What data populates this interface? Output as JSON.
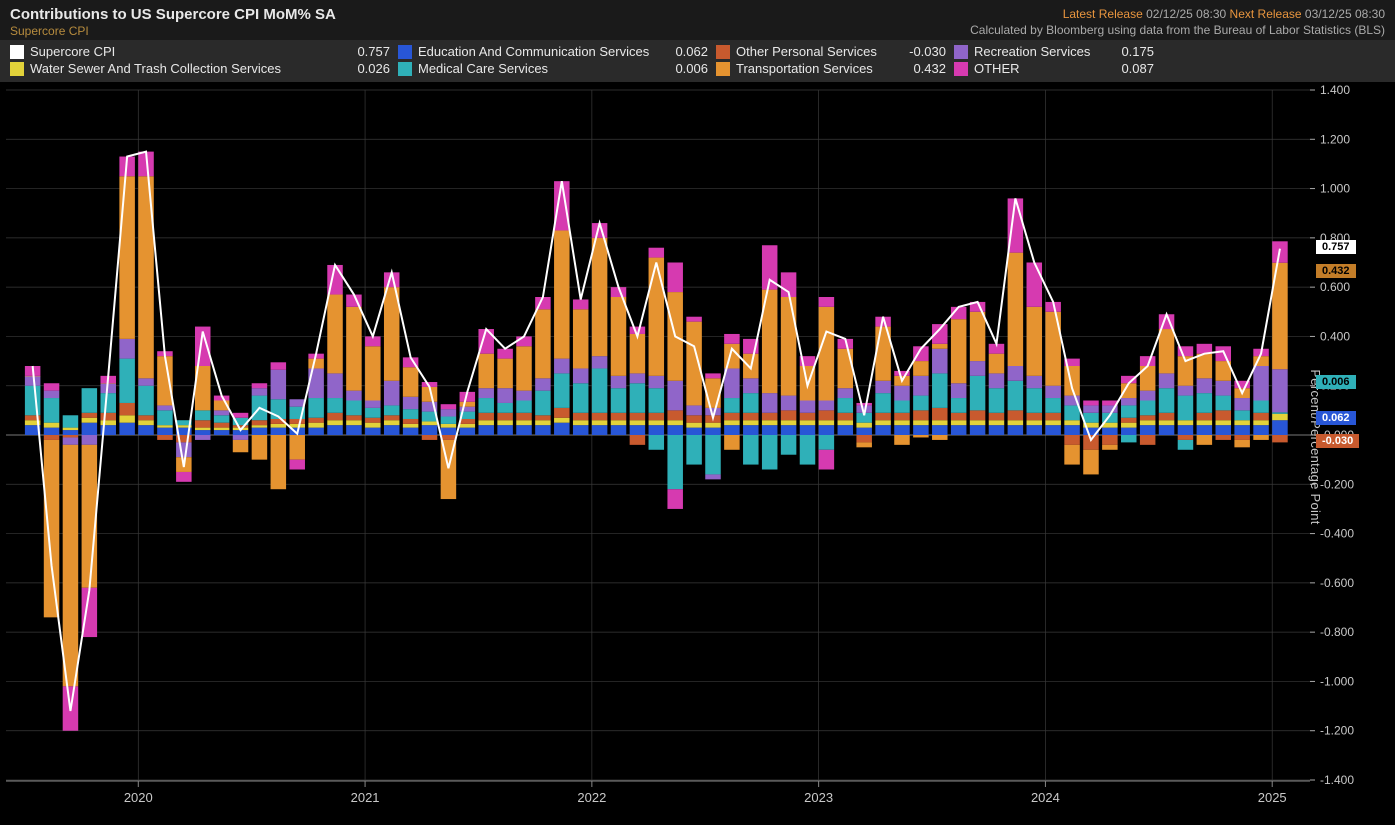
{
  "header": {
    "title": "Contributions to US Supercore CPI MoM% SA",
    "subtitle": "Supercore CPI",
    "latest_release_label": "Latest Release",
    "latest_release_value": "02/12/25 08:30",
    "next_release_label": "Next Release",
    "next_release_value": "03/12/25 08:30",
    "source_text": "Calculated by Bloomberg using data from the Bureau of Labor Statistics (BLS)"
  },
  "chart": {
    "type": "stacked-bar-with-line",
    "background_color": "#000000",
    "grid_color": "#3a3a3a",
    "axis_text_color": "#c8c8c8",
    "y_axis": {
      "label": "Percent/Percentage Point",
      "min": -1.4,
      "max": 1.4,
      "step": 0.2
    },
    "x_axis": {
      "year_ticks": [
        "2020",
        "2021",
        "2022",
        "2023",
        "2024",
        "2025"
      ],
      "year_tick_indices": [
        6,
        18,
        30,
        42,
        54,
        66
      ],
      "start": "2019-07",
      "months": 68
    },
    "series": [
      {
        "key": "supercore",
        "label": "Supercore CPI",
        "color": "#ffffff",
        "value": "0.757",
        "type": "line"
      },
      {
        "key": "education",
        "label": "Education And Communication Services",
        "color": "#2856d6",
        "value": "0.062",
        "type": "bar"
      },
      {
        "key": "other_personal",
        "label": "Other Personal Services",
        "color": "#c85a2e",
        "value": "-0.030",
        "type": "bar"
      },
      {
        "key": "recreation",
        "label": "Recreation Services",
        "color": "#9065c9",
        "value": "0.175",
        "type": "bar"
      },
      {
        "key": "water",
        "label": "Water Sewer And Trash Collection Services",
        "color": "#e2d23a",
        "value": "0.026",
        "type": "bar"
      },
      {
        "key": "medical",
        "label": "Medical Care Services",
        "color": "#2fb0b8",
        "value": "0.006",
        "type": "bar"
      },
      {
        "key": "transportation",
        "label": "Transportation Services",
        "color": "#e59330",
        "value": "0.432",
        "type": "bar"
      },
      {
        "key": "other",
        "label": "OTHER",
        "color": "#d63ab0",
        "value": "0.087",
        "type": "bar"
      }
    ],
    "value_tags": [
      {
        "value": "0.757",
        "bg": "#ffffff",
        "fg": "#000000"
      },
      {
        "value": "0.432",
        "bg": "#e59330",
        "fg": "#000000",
        "hidden": true
      },
      {
        "value": "0.006",
        "bg": "#2fb0b8",
        "fg": "#000000"
      },
      {
        "value": "0.062",
        "bg": "#2856d6",
        "fg": "#ffffff"
      },
      {
        "value": "-0.030",
        "bg": "#c85a2e",
        "fg": "#ffffff"
      }
    ],
    "data": [
      {
        "t": 0,
        "education": 0.04,
        "other_personal": 0.02,
        "recreation": 0.04,
        "water": 0.02,
        "medical": 0.12,
        "transportation": 0.0,
        "other": 0.04
      },
      {
        "t": 1,
        "education": 0.03,
        "other_personal": -0.02,
        "recreation": 0.03,
        "water": 0.02,
        "medical": 0.1,
        "transportation": -0.72,
        "other": 0.03
      },
      {
        "t": 2,
        "education": 0.02,
        "other_personal": -0.01,
        "recreation": -0.03,
        "water": 0.01,
        "medical": 0.05,
        "transportation": -0.98,
        "other": -0.18
      },
      {
        "t": 3,
        "education": 0.05,
        "other_personal": 0.02,
        "recreation": -0.04,
        "water": 0.02,
        "medical": 0.1,
        "transportation": -0.58,
        "other": -0.2
      },
      {
        "t": 4,
        "education": 0.04,
        "other_personal": 0.03,
        "recreation": 0.04,
        "water": 0.02,
        "medical": 0.08,
        "transportation": 0.0,
        "other": 0.03
      },
      {
        "t": 5,
        "education": 0.05,
        "other_personal": 0.05,
        "recreation": 0.08,
        "water": 0.03,
        "medical": 0.18,
        "transportation": 0.66,
        "other": 0.08
      },
      {
        "t": 6,
        "education": 0.04,
        "other_personal": 0.02,
        "recreation": 0.03,
        "water": 0.02,
        "medical": 0.12,
        "transportation": 0.82,
        "other": 0.1
      },
      {
        "t": 7,
        "education": 0.03,
        "other_personal": -0.02,
        "recreation": 0.02,
        "water": 0.01,
        "medical": 0.06,
        "transportation": 0.2,
        "other": 0.02
      },
      {
        "t": 8,
        "education": 0.03,
        "other_personal": -0.03,
        "recreation": -0.06,
        "water": 0.01,
        "medical": 0.02,
        "transportation": -0.06,
        "other": -0.04
      },
      {
        "t": 9,
        "education": 0.02,
        "other_personal": 0.03,
        "recreation": -0.02,
        "water": 0.01,
        "medical": 0.04,
        "transportation": 0.18,
        "other": 0.16
      },
      {
        "t": 10,
        "education": 0.02,
        "other_personal": 0.02,
        "recreation": 0.02,
        "water": 0.01,
        "medical": 0.03,
        "transportation": 0.04,
        "other": 0.02
      },
      {
        "t": 11,
        "education": 0.02,
        "other_personal": 0.01,
        "recreation": -0.02,
        "water": 0.01,
        "medical": 0.03,
        "transportation": -0.05,
        "other": 0.02
      },
      {
        "t": 12,
        "education": 0.03,
        "other_personal": 0.02,
        "recreation": 0.03,
        "water": 0.01,
        "medical": 0.1,
        "transportation": -0.1,
        "other": 0.02
      },
      {
        "t": 13,
        "education": 0.03,
        "other_personal": 0.02,
        "recreation": 0.12,
        "water": 0.015,
        "medical": 0.08,
        "transportation": -0.22,
        "other": 0.03
      },
      {
        "t": 14,
        "education": 0.03,
        "other_personal": 0.02,
        "recreation": 0.03,
        "water": 0.015,
        "medical": 0.05,
        "transportation": -0.1,
        "other": -0.04
      },
      {
        "t": 15,
        "education": 0.03,
        "other_personal": 0.02,
        "recreation": 0.12,
        "water": 0.02,
        "medical": 0.08,
        "transportation": 0.04,
        "other": 0.02
      },
      {
        "t": 16,
        "education": 0.04,
        "other_personal": 0.03,
        "recreation": 0.1,
        "water": 0.02,
        "medical": 0.06,
        "transportation": 0.32,
        "other": 0.12
      },
      {
        "t": 17,
        "education": 0.04,
        "other_personal": 0.02,
        "recreation": 0.04,
        "water": 0.02,
        "medical": 0.06,
        "transportation": 0.34,
        "other": 0.05
      },
      {
        "t": 18,
        "education": 0.03,
        "other_personal": 0.02,
        "recreation": 0.03,
        "water": 0.02,
        "medical": 0.04,
        "transportation": 0.22,
        "other": 0.04
      },
      {
        "t": 19,
        "education": 0.04,
        "other_personal": 0.02,
        "recreation": 0.1,
        "water": 0.02,
        "medical": 0.04,
        "transportation": 0.38,
        "other": 0.06
      },
      {
        "t": 20,
        "education": 0.03,
        "other_personal": 0.02,
        "recreation": 0.05,
        "water": 0.015,
        "medical": 0.04,
        "transportation": 0.12,
        "other": 0.04
      },
      {
        "t": 21,
        "education": 0.04,
        "other_personal": -0.02,
        "recreation": 0.04,
        "water": 0.015,
        "medical": 0.04,
        "transportation": 0.06,
        "other": 0.02
      },
      {
        "t": 22,
        "education": 0.03,
        "other_personal": -0.02,
        "recreation": 0.03,
        "water": 0.015,
        "medical": 0.03,
        "transportation": -0.24,
        "other": 0.02
      },
      {
        "t": 23,
        "education": 0.03,
        "other_personal": 0.02,
        "recreation": 0.02,
        "water": 0.015,
        "medical": 0.03,
        "transportation": 0.02,
        "other": 0.04
      },
      {
        "t": 24,
        "education": 0.04,
        "other_personal": 0.03,
        "recreation": 0.04,
        "water": 0.02,
        "medical": 0.06,
        "transportation": 0.14,
        "other": 0.1
      },
      {
        "t": 25,
        "education": 0.04,
        "other_personal": 0.03,
        "recreation": 0.06,
        "water": 0.02,
        "medical": 0.04,
        "transportation": 0.12,
        "other": 0.04
      },
      {
        "t": 26,
        "education": 0.04,
        "other_personal": 0.03,
        "recreation": 0.04,
        "water": 0.02,
        "medical": 0.05,
        "transportation": 0.18,
        "other": 0.04
      },
      {
        "t": 27,
        "education": 0.04,
        "other_personal": 0.02,
        "recreation": 0.05,
        "water": 0.02,
        "medical": 0.1,
        "transportation": 0.28,
        "other": 0.05
      },
      {
        "t": 28,
        "education": 0.05,
        "other_personal": 0.04,
        "recreation": 0.06,
        "water": 0.02,
        "medical": 0.14,
        "transportation": 0.52,
        "other": 0.2
      },
      {
        "t": 29,
        "education": 0.04,
        "other_personal": 0.03,
        "recreation": 0.06,
        "water": 0.02,
        "medical": 0.12,
        "transportation": 0.24,
        "other": 0.04
      },
      {
        "t": 30,
        "education": 0.04,
        "other_personal": 0.03,
        "recreation": 0.05,
        "water": 0.02,
        "medical": 0.18,
        "transportation": 0.48,
        "other": 0.06
      },
      {
        "t": 31,
        "education": 0.04,
        "other_personal": 0.03,
        "recreation": 0.05,
        "water": 0.02,
        "medical": 0.1,
        "transportation": 0.32,
        "other": 0.04
      },
      {
        "t": 32,
        "education": 0.04,
        "other_personal": 0.03,
        "recreation": 0.04,
        "water": 0.02,
        "medical": 0.12,
        "transportation": 0.16,
        "other": 0.03,
        "other_personal_n": -0.04
      },
      {
        "t": 33,
        "education": 0.04,
        "other_personal": 0.03,
        "recreation": 0.05,
        "water": 0.02,
        "medical": 0.1,
        "transportation": 0.48,
        "other": 0.04,
        "medical_n": -0.06
      },
      {
        "t": 34,
        "education": 0.04,
        "other_personal": 0.04,
        "recreation": 0.12,
        "water": 0.02,
        "medical": -0.22,
        "transportation": 0.36,
        "other": 0.12,
        "other_n": -0.08
      },
      {
        "t": 35,
        "education": 0.03,
        "other_personal": 0.03,
        "recreation": 0.04,
        "water": 0.02,
        "medical": -0.12,
        "transportation": 0.34,
        "other": 0.02
      },
      {
        "t": 36,
        "education": 0.03,
        "other_personal": 0.03,
        "recreation": 0.03,
        "water": 0.02,
        "medical": -0.16,
        "transportation": 0.12,
        "other": 0.02,
        "recreation_n": -0.02
      },
      {
        "t": 37,
        "education": 0.04,
        "other_personal": 0.03,
        "recreation": 0.12,
        "water": 0.02,
        "medical": 0.06,
        "transportation": 0.1,
        "other": 0.04,
        "transportation_n": -0.06
      },
      {
        "t": 38,
        "education": 0.04,
        "other_personal": 0.03,
        "recreation": 0.06,
        "water": 0.02,
        "medical": 0.08,
        "transportation": 0.1,
        "other": 0.06,
        "medical_n": -0.12
      },
      {
        "t": 39,
        "education": 0.04,
        "other_personal": 0.03,
        "recreation": 0.08,
        "water": 0.02,
        "medical": -0.14,
        "transportation": 0.42,
        "other": 0.18
      },
      {
        "t": 40,
        "education": 0.04,
        "other_personal": 0.04,
        "recreation": 0.06,
        "water": 0.02,
        "medical": -0.08,
        "transportation": 0.4,
        "other": 0.1
      },
      {
        "t": 41,
        "education": 0.04,
        "other_personal": 0.03,
        "recreation": 0.05,
        "water": 0.02,
        "medical": -0.12,
        "transportation": 0.14,
        "other": 0.04
      },
      {
        "t": 42,
        "education": 0.04,
        "other_personal": 0.04,
        "recreation": 0.04,
        "water": 0.02,
        "medical": -0.06,
        "transportation": 0.38,
        "other": 0.04,
        "other_n": -0.08
      },
      {
        "t": 43,
        "education": 0.04,
        "other_personal": 0.03,
        "recreation": 0.04,
        "water": 0.02,
        "medical": 0.06,
        "transportation": 0.16,
        "other": 0.04
      },
      {
        "t": 44,
        "education": 0.03,
        "other_personal": -0.03,
        "recreation": 0.03,
        "water": 0.02,
        "medical": 0.04,
        "transportation": -0.02,
        "other": 0.01
      },
      {
        "t": 45,
        "education": 0.04,
        "other_personal": 0.03,
        "recreation": 0.05,
        "water": 0.02,
        "medical": 0.08,
        "transportation": 0.22,
        "other": 0.04
      },
      {
        "t": 46,
        "education": 0.04,
        "other_personal": 0.03,
        "recreation": 0.06,
        "water": 0.02,
        "medical": 0.05,
        "transportation": 0.04,
        "other": 0.02,
        "transportation_n": -0.04
      },
      {
        "t": 47,
        "education": 0.04,
        "other_personal": 0.04,
        "recreation": 0.08,
        "water": 0.02,
        "medical": 0.06,
        "transportation": 0.06,
        "other": 0.06,
        "transportation_n": -0.01
      },
      {
        "t": 48,
        "education": 0.04,
        "other_personal": 0.05,
        "recreation": 0.1,
        "water": 0.02,
        "medical": 0.14,
        "transportation": 0.02,
        "other": 0.08,
        "transportation_n": -0.02
      },
      {
        "t": 49,
        "education": 0.04,
        "other_personal": 0.03,
        "recreation": 0.06,
        "water": 0.02,
        "medical": 0.06,
        "transportation": 0.26,
        "other": 0.05
      },
      {
        "t": 50,
        "education": 0.04,
        "other_personal": 0.04,
        "recreation": 0.06,
        "water": 0.02,
        "medical": 0.14,
        "transportation": 0.2,
        "other": 0.04
      },
      {
        "t": 51,
        "education": 0.04,
        "other_personal": 0.03,
        "recreation": 0.06,
        "water": 0.02,
        "medical": 0.1,
        "transportation": 0.08,
        "other": 0.04
      },
      {
        "t": 52,
        "education": 0.04,
        "other_personal": 0.04,
        "recreation": 0.06,
        "water": 0.02,
        "medical": 0.12,
        "transportation": 0.46,
        "other": 0.22
      },
      {
        "t": 53,
        "education": 0.04,
        "other_personal": 0.03,
        "recreation": 0.05,
        "water": 0.02,
        "medical": 0.1,
        "transportation": 0.28,
        "other": 0.18
      },
      {
        "t": 54,
        "education": 0.04,
        "other_personal": 0.03,
        "recreation": 0.05,
        "water": 0.02,
        "medical": 0.06,
        "transportation": 0.3,
        "other": 0.04
      },
      {
        "t": 55,
        "education": 0.04,
        "other_personal": -0.04,
        "recreation": 0.04,
        "water": 0.02,
        "medical": 0.06,
        "transportation": 0.12,
        "other": 0.03,
        "transportation_n": -0.08
      },
      {
        "t": 56,
        "education": 0.03,
        "other_personal": -0.06,
        "recreation": 0.03,
        "water": 0.02,
        "medical": 0.04,
        "transportation": -0.1,
        "other": 0.02
      },
      {
        "t": 57,
        "education": 0.03,
        "other_personal": -0.04,
        "recreation": 0.03,
        "water": 0.02,
        "medical": 0.04,
        "transportation": -0.02,
        "other": 0.02
      },
      {
        "t": 58,
        "education": 0.03,
        "other_personal": 0.02,
        "recreation": 0.03,
        "water": 0.02,
        "medical": 0.05,
        "transportation": 0.06,
        "other": 0.03,
        "medical_n": -0.03
      },
      {
        "t": 59,
        "education": 0.04,
        "other_personal": 0.02,
        "recreation": 0.04,
        "water": 0.02,
        "medical": 0.06,
        "transportation": 0.1,
        "other": 0.04,
        "other_personal_n": -0.04
      },
      {
        "t": 60,
        "education": 0.04,
        "other_personal": 0.03,
        "recreation": 0.06,
        "water": 0.02,
        "medical": 0.1,
        "transportation": 0.18,
        "other": 0.06
      },
      {
        "t": 61,
        "education": 0.04,
        "other_personal": -0.02,
        "recreation": 0.04,
        "water": 0.02,
        "medical": 0.1,
        "transportation": 0.12,
        "other": 0.04,
        "medical_n": -0.04
      },
      {
        "t": 62,
        "education": 0.04,
        "other_personal": 0.03,
        "recreation": 0.06,
        "water": 0.02,
        "medical": 0.08,
        "transportation": 0.1,
        "other": 0.04,
        "transportation_n": -0.04
      },
      {
        "t": 63,
        "education": 0.04,
        "other_personal": 0.04,
        "recreation": 0.06,
        "water": 0.02,
        "medical": 0.06,
        "transportation": 0.08,
        "other": 0.06,
        "other_personal_n": -0.02
      },
      {
        "t": 64,
        "education": 0.04,
        "other_personal": -0.02,
        "recreation": 0.05,
        "water": 0.02,
        "medical": 0.04,
        "transportation": 0.04,
        "other": 0.03,
        "transportation_n": -0.03
      },
      {
        "t": 65,
        "education": 0.04,
        "other_personal": 0.03,
        "recreation": 0.14,
        "water": 0.02,
        "medical": 0.05,
        "transportation": 0.04,
        "other": 0.03,
        "transportation_n": -0.02
      },
      {
        "t": 66,
        "education": 0.06,
        "other_personal": -0.03,
        "recreation": 0.175,
        "water": 0.026,
        "medical": 0.006,
        "transportation": 0.432,
        "other": 0.087
      }
    ]
  }
}
